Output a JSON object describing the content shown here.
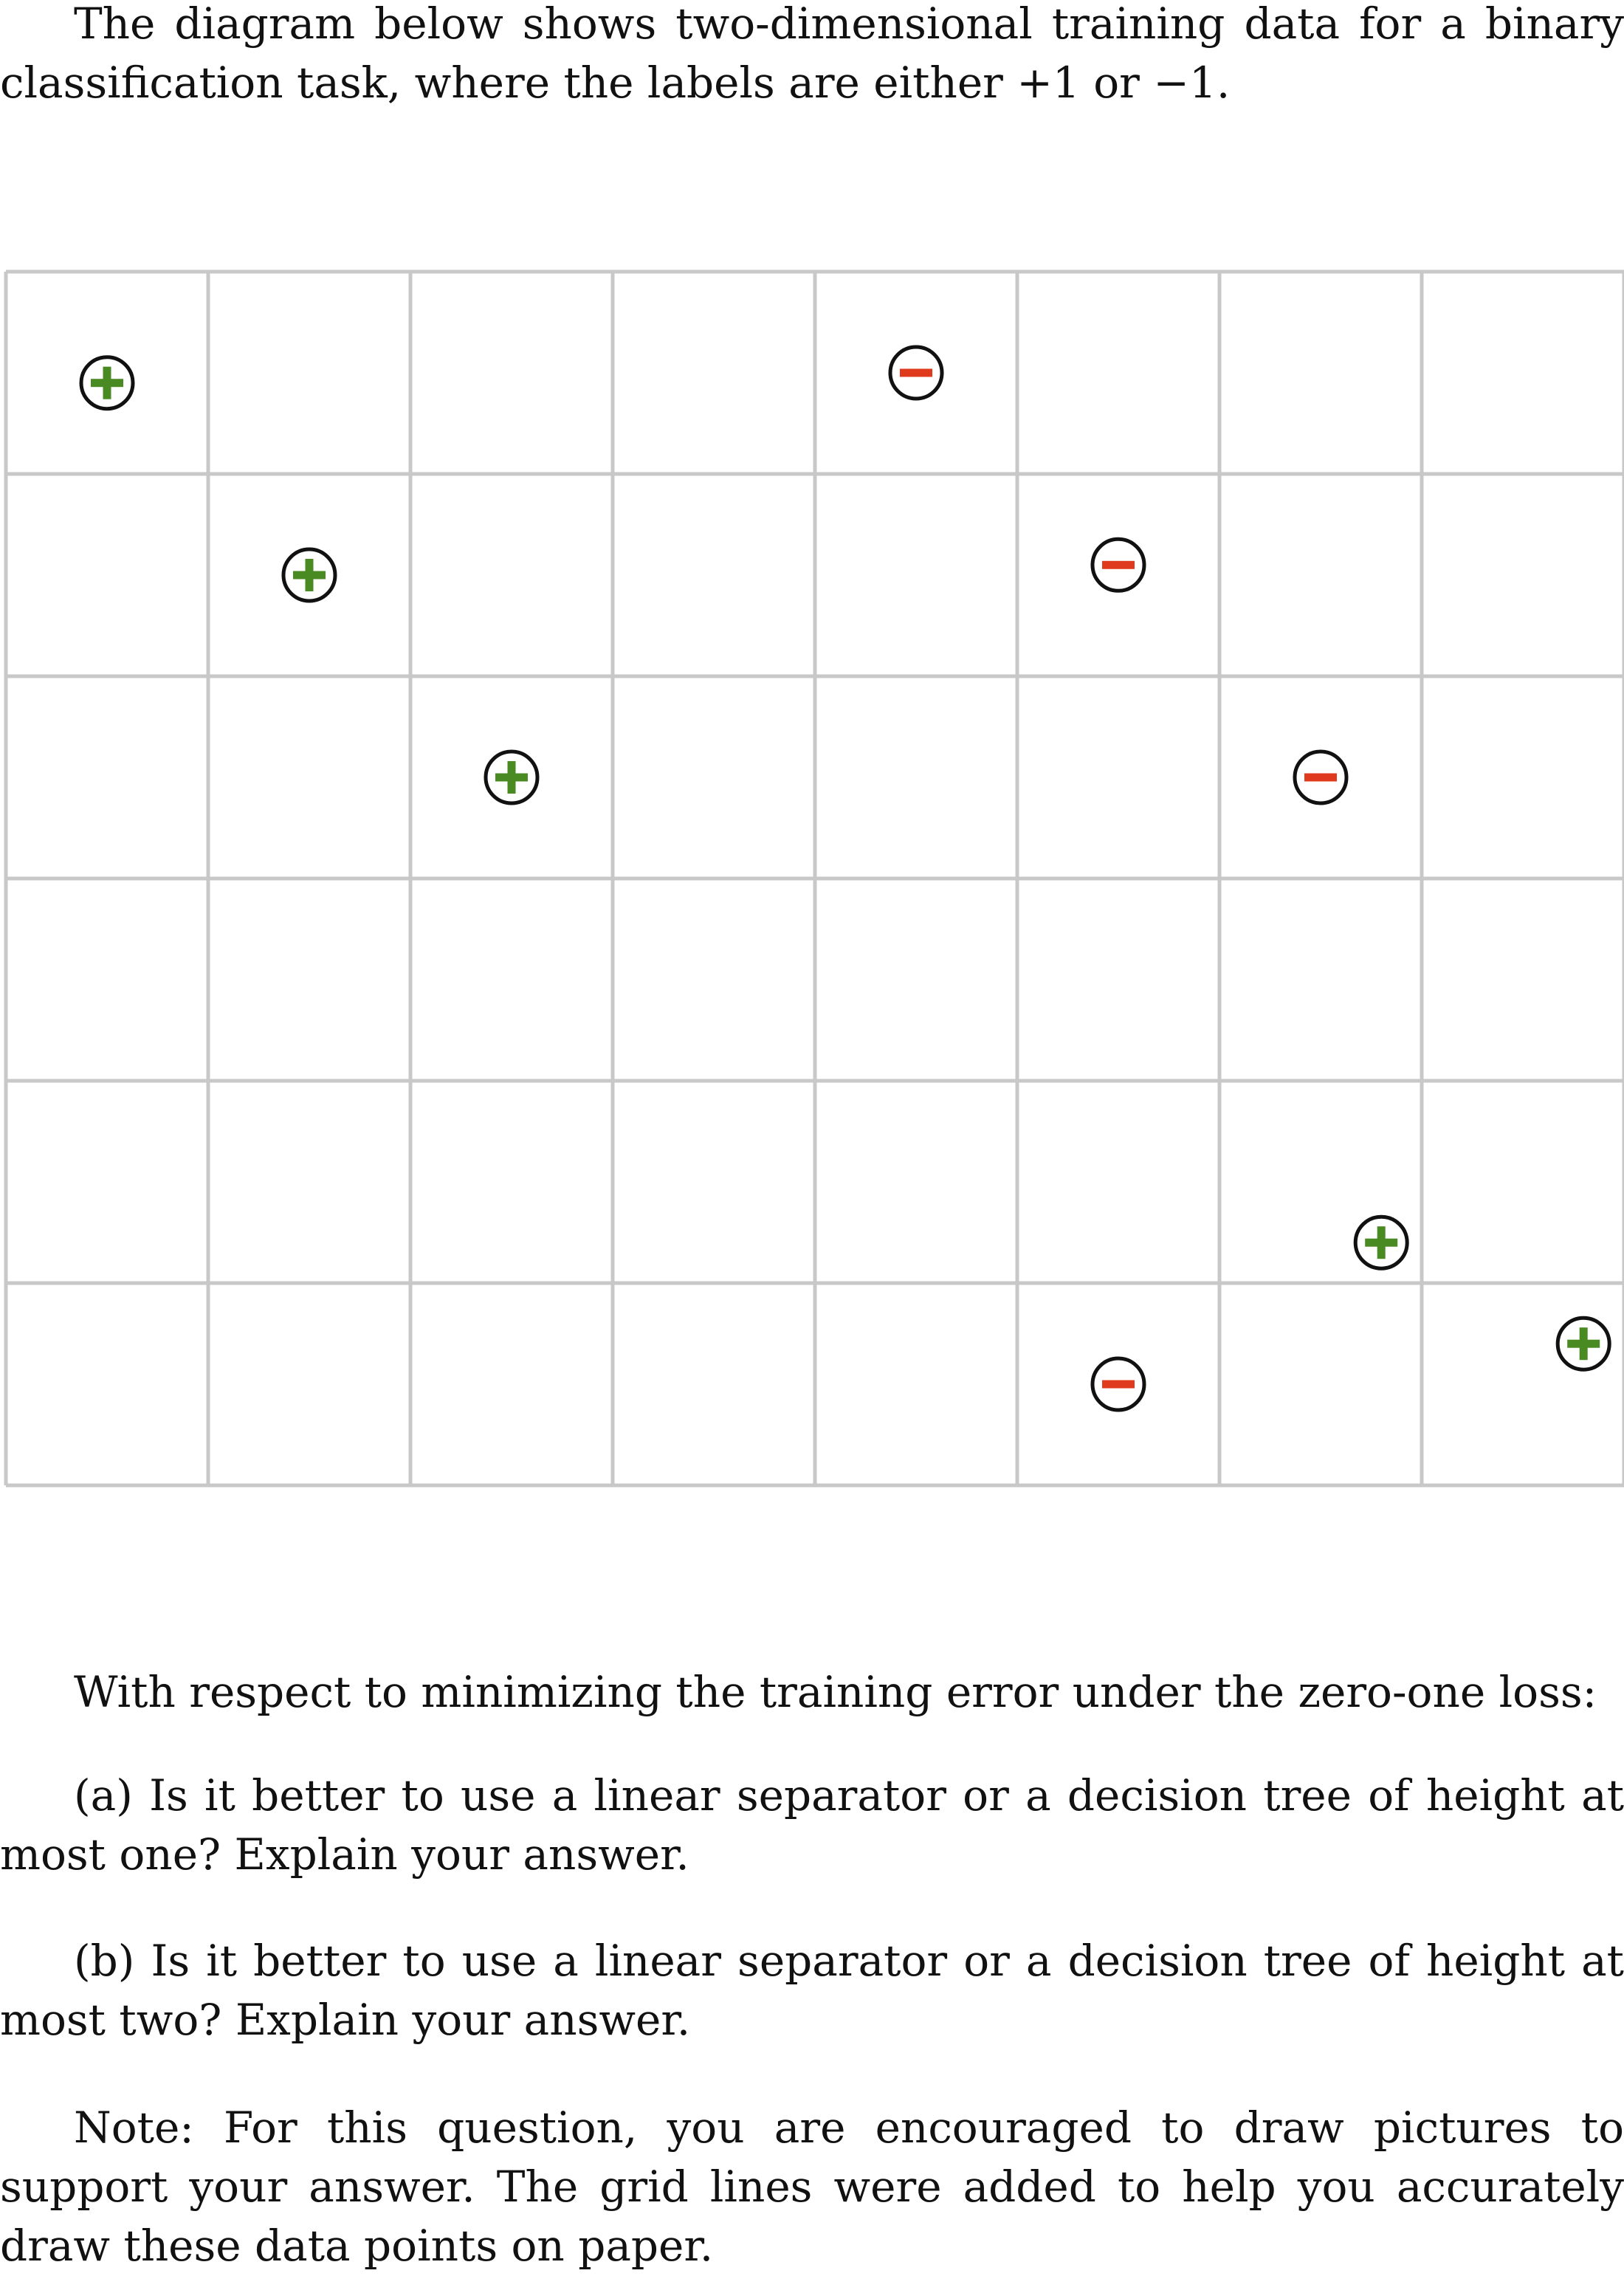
{
  "intro": "The diagram below shows two-dimensional training data for a binary classification task, where the labels are either +1 or −1.",
  "grid": {
    "columns": 8,
    "rows": 6,
    "line_color": "#c8c8c8",
    "positive_color": "#4a8a22",
    "negative_color": "#e03a1e",
    "points": [
      {
        "label": "+",
        "x": 0.5,
        "y": 5.45
      },
      {
        "label": "+",
        "x": 1.5,
        "y": 4.5
      },
      {
        "label": "+",
        "x": 2.5,
        "y": 3.5
      },
      {
        "label": "−",
        "x": 4.5,
        "y": 5.5
      },
      {
        "label": "−",
        "x": 5.5,
        "y": 4.55
      },
      {
        "label": "−",
        "x": 6.5,
        "y": 3.5
      },
      {
        "label": "+",
        "x": 6.8,
        "y": 1.2
      },
      {
        "label": "+",
        "x": 7.8,
        "y": 0.7
      },
      {
        "label": "−",
        "x": 5.5,
        "y": 0.5
      }
    ]
  },
  "question": {
    "respect": "With respect to minimizing the training error under the zero-one loss:",
    "a": "(a) Is it better to use a linear separator or a decision tree of height at most one? Explain your answer.",
    "b": "(b) Is it better to use a linear separator or a decision tree of height at most two? Explain your answer.",
    "note": "Note: For this question, you are encouraged to draw pictures to support your answer. The grid lines were added to help you accurately draw these data points on paper."
  }
}
